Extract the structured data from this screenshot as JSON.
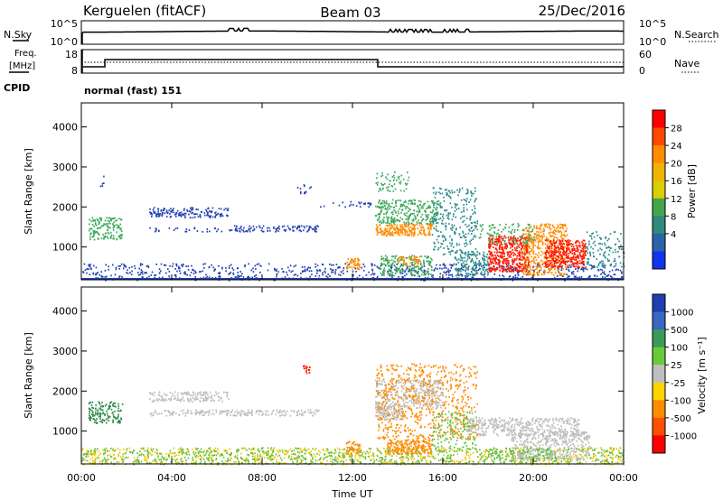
{
  "header": {
    "station": "Kerguelen (fitACF)",
    "beam": "Beam 03",
    "date": "25/Dec/2016"
  },
  "strip_labels": {
    "nsky": "N.Sky",
    "nsearch": "N.Search",
    "freq_line1": "Freq.",
    "freq_line2": "[MHz]",
    "nave": "Nave",
    "cpid": "CPID",
    "cpid_value": "normal (fast) 151"
  },
  "noise_axis": {
    "left_ticks": [
      "10^5",
      "10^0"
    ],
    "right_ticks": [
      "10^5",
      "10^0"
    ]
  },
  "freq_axis": {
    "left_ticks": [
      "18",
      "8"
    ],
    "right_ticks": [
      "60",
      "0"
    ]
  },
  "chart_data": [
    {
      "type": "heatmap",
      "name": "power",
      "ylabel": "Slant Range [km]",
      "y_ticks": [
        "4000",
        "3000",
        "2000",
        "1000"
      ],
      "colorbar_label": "Power [dB]",
      "colorbar_ticks": [
        "28",
        "24",
        "20",
        "16",
        "12",
        "8",
        "4"
      ],
      "colorbar_colors": [
        "#ff0000",
        "#ff4800",
        "#ff8c00",
        "#f0b400",
        "#d8d000",
        "#44a64a",
        "#2e8a7a",
        "#2a63a8",
        "#1233ee"
      ],
      "colors": {
        "red": "#ff1a00",
        "orange": "#ff8c00",
        "yellow": "#e8d200",
        "green": "#3aa85a",
        "teal": "#2a8a8a",
        "blue": "#2040b0"
      },
      "regions": [
        {
          "t": [
            0.0,
            24.0
          ],
          "r": [
            180,
            600
          ],
          "color": "blue",
          "density": "sparse"
        },
        {
          "t": [
            0.3,
            1.8
          ],
          "r": [
            1200,
            1750
          ],
          "color": "green",
          "density": "medium"
        },
        {
          "t": [
            0.8,
            1.0
          ],
          "r": [
            2450,
            2800
          ],
          "color": "blue",
          "density": "sparse"
        },
        {
          "t": [
            3.0,
            6.5
          ],
          "r": [
            1750,
            2000
          ],
          "color": "blue",
          "density": "medium"
        },
        {
          "t": [
            3.0,
            6.5
          ],
          "r": [
            1400,
            1500
          ],
          "color": "blue",
          "density": "sparse"
        },
        {
          "t": [
            6.5,
            10.5
          ],
          "r": [
            1400,
            1550
          ],
          "color": "blue",
          "density": "medium"
        },
        {
          "t": [
            9.5,
            10.2
          ],
          "r": [
            2350,
            2600
          ],
          "color": "blue",
          "density": "sparse"
        },
        {
          "t": [
            10.5,
            12.8
          ],
          "r": [
            2000,
            2150
          ],
          "color": "blue",
          "density": "sparse"
        },
        {
          "t": [
            11.7,
            12.3
          ],
          "r": [
            450,
            750
          ],
          "color": "orange",
          "density": "dense"
        },
        {
          "t": [
            13.0,
            15.5
          ],
          "r": [
            1300,
            1600
          ],
          "color": "orange",
          "density": "dense"
        },
        {
          "t": [
            13.0,
            15.8
          ],
          "r": [
            1600,
            2200
          ],
          "color": "green",
          "density": "medium"
        },
        {
          "t": [
            13.0,
            14.5
          ],
          "r": [
            2400,
            2900
          ],
          "color": "green",
          "density": "sparse"
        },
        {
          "t": [
            13.2,
            15.5
          ],
          "r": [
            300,
            800
          ],
          "color": "green",
          "density": "medium"
        },
        {
          "t": [
            14.0,
            15.0
          ],
          "r": [
            550,
            800
          ],
          "color": "orange",
          "density": "medium"
        },
        {
          "t": [
            15.5,
            17.5
          ],
          "r": [
            800,
            2500
          ],
          "color": "teal",
          "density": "sparse"
        },
        {
          "t": [
            16.5,
            18.0
          ],
          "r": [
            300,
            900
          ],
          "color": "teal",
          "density": "medium"
        },
        {
          "t": [
            18.0,
            19.8
          ],
          "r": [
            400,
            1300
          ],
          "color": "red",
          "density": "dense"
        },
        {
          "t": [
            19.5,
            21.5
          ],
          "r": [
            300,
            1600
          ],
          "color": "orange",
          "density": "medium"
        },
        {
          "t": [
            20.5,
            22.3
          ],
          "r": [
            500,
            1200
          ],
          "color": "red",
          "density": "dense"
        },
        {
          "t": [
            17.5,
            20.0
          ],
          "r": [
            1100,
            1600
          ],
          "color": "green",
          "density": "sparse"
        },
        {
          "t": [
            22.3,
            24.0
          ],
          "r": [
            500,
            1400
          ],
          "color": "teal",
          "density": "sparse"
        }
      ]
    },
    {
      "type": "heatmap",
      "name": "velocity",
      "ylabel": "Slant Range [km]",
      "y_ticks": [
        "4000",
        "3000",
        "2000",
        "1000"
      ],
      "colorbar_label": "Velocity [m s⁻¹]",
      "colorbar_ticks": [
        "1000",
        "500",
        "100",
        "25",
        "-25",
        "-100",
        "-500",
        "-1000"
      ],
      "colorbar_colors": [
        "#1f3fb0",
        "#3868c0",
        "#3a9a5a",
        "#6acb3a",
        "#bfbfbf",
        "#ffd400",
        "#ff8c00",
        "#ff5000",
        "#ff0000"
      ],
      "colors": {
        "grey": "#bcbcbc",
        "orange": "#ff8c00",
        "yellow": "#f0c800",
        "green": "#5fc040",
        "darkgreen": "#2e8a4a",
        "red": "#ff2000",
        "blue": "#2040b0"
      },
      "regions": [
        {
          "t": [
            0.0,
            24.0
          ],
          "r": [
            180,
            600
          ],
          "color": "yellow",
          "density": "sparse"
        },
        {
          "t": [
            0.0,
            24.0
          ],
          "r": [
            180,
            600
          ],
          "color": "green",
          "density": "sparse"
        },
        {
          "t": [
            0.3,
            1.8
          ],
          "r": [
            1200,
            1750
          ],
          "color": "darkgreen",
          "density": "medium"
        },
        {
          "t": [
            3.0,
            6.5
          ],
          "r": [
            1750,
            2000
          ],
          "color": "grey",
          "density": "medium"
        },
        {
          "t": [
            3.0,
            10.5
          ],
          "r": [
            1400,
            1550
          ],
          "color": "grey",
          "density": "medium"
        },
        {
          "t": [
            9.8,
            10.1
          ],
          "r": [
            2450,
            2650
          ],
          "color": "red",
          "density": "dense"
        },
        {
          "t": [
            11.7,
            12.3
          ],
          "r": [
            450,
            750
          ],
          "color": "orange",
          "density": "dense"
        },
        {
          "t": [
            13.0,
            14.2
          ],
          "r": [
            1300,
            1650
          ],
          "color": "grey",
          "density": "dense"
        },
        {
          "t": [
            13.0,
            16.0
          ],
          "r": [
            1600,
            2300
          ],
          "color": "grey",
          "density": "medium"
        },
        {
          "t": [
            13.5,
            15.5
          ],
          "r": [
            450,
            800
          ],
          "color": "orange",
          "density": "dense"
        },
        {
          "t": [
            13.0,
            17.5
          ],
          "r": [
            800,
            2700
          ],
          "color": "orange",
          "density": "sparse"
        },
        {
          "t": [
            15.5,
            17.5
          ],
          "r": [
            500,
            1500
          ],
          "color": "green",
          "density": "sparse"
        },
        {
          "t": [
            17.0,
            22.0
          ],
          "r": [
            900,
            1350
          ],
          "color": "grey",
          "density": "medium"
        },
        {
          "t": [
            19.0,
            22.5
          ],
          "r": [
            300,
            1000
          ],
          "color": "grey",
          "density": "medium"
        },
        {
          "t": [
            18.0,
            21.0
          ],
          "r": [
            250,
            600
          ],
          "color": "green",
          "density": "sparse"
        }
      ]
    }
  ],
  "x_ticks": [
    "00:00",
    "04:00",
    "08:00",
    "12:00",
    "16:00",
    "20:00",
    "00:00"
  ],
  "x_label": "Time UT"
}
